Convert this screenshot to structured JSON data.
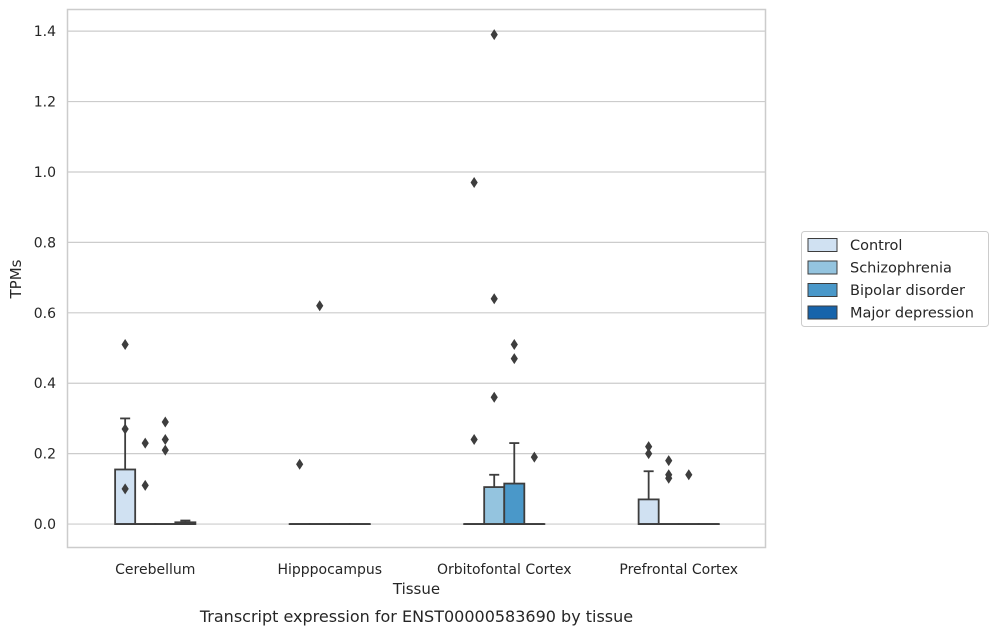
{
  "caption": "Transcript expression for ENST00000583690 by tissue",
  "chart_data": {
    "type": "box",
    "xlabel": "Tissue",
    "ylabel": "TPMs",
    "ylim": [
      -0.068,
      1.46
    ],
    "yticks": [
      0.0,
      0.2,
      0.4,
      0.6,
      0.8,
      1.0,
      1.2,
      1.4
    ],
    "ytick_labels": [
      "0.0",
      "0.2",
      "0.4",
      "0.6",
      "0.8",
      "1.0",
      "1.2",
      "1.4"
    ],
    "grid": "horizontal",
    "legend_placement": "right",
    "categories": [
      "Cerebellum",
      "Hipppocampus",
      "Orbitofontal Cortex",
      "Prefrontal Cortex"
    ],
    "series": [
      {
        "name": "Control",
        "color": "#d0e1f2",
        "boxes": [
          {
            "q1": 0.0,
            "median": 0.0,
            "q3": 0.155,
            "whisker_low": 0.0,
            "whisker_high": 0.3,
            "outliers": [
              0.1,
              0.27,
              0.51
            ]
          },
          {
            "q1": 0.0,
            "median": 0.0,
            "q3": 0.0,
            "whisker_low": 0.0,
            "whisker_high": 0.0,
            "outliers": [
              0.17
            ]
          },
          {
            "q1": 0.0,
            "median": 0.0,
            "q3": 0.0,
            "whisker_low": 0.0,
            "whisker_high": 0.0,
            "outliers": [
              0.24,
              0.97
            ]
          },
          {
            "q1": 0.0,
            "median": 0.0,
            "q3": 0.07,
            "whisker_low": 0.0,
            "whisker_high": 0.15,
            "outliers": [
              0.2,
              0.22
            ]
          }
        ]
      },
      {
        "name": "Schizophrenia",
        "color": "#94c4df",
        "boxes": [
          {
            "q1": 0.0,
            "median": 0.0,
            "q3": 0.0,
            "whisker_low": 0.0,
            "whisker_high": 0.0,
            "outliers": [
              0.11,
              0.23
            ]
          },
          {
            "q1": 0.0,
            "median": 0.0,
            "q3": 0.0,
            "whisker_low": 0.0,
            "whisker_high": 0.0,
            "outliers": [
              0.62
            ]
          },
          {
            "q1": 0.0,
            "median": 0.0,
            "q3": 0.105,
            "whisker_low": 0.0,
            "whisker_high": 0.14,
            "outliers": [
              0.36,
              0.64,
              1.39
            ]
          },
          {
            "q1": 0.0,
            "median": 0.0,
            "q3": 0.0,
            "whisker_low": 0.0,
            "whisker_high": 0.0,
            "outliers": [
              0.13,
              0.14,
              0.18
            ]
          }
        ]
      },
      {
        "name": "Bipolar disorder",
        "color": "#4a98c9",
        "boxes": [
          {
            "q1": 0.0,
            "median": 0.0,
            "q3": 0.0,
            "whisker_low": 0.0,
            "whisker_high": 0.0,
            "outliers": [
              0.21,
              0.24,
              0.29
            ]
          },
          {
            "q1": 0.0,
            "median": 0.0,
            "q3": 0.0,
            "whisker_low": 0.0,
            "whisker_high": 0.0,
            "outliers": []
          },
          {
            "q1": 0.0,
            "median": 0.0,
            "q3": 0.115,
            "whisker_low": 0.0,
            "whisker_high": 0.23,
            "outliers": [
              0.47,
              0.51
            ]
          },
          {
            "q1": 0.0,
            "median": 0.0,
            "q3": 0.0,
            "whisker_low": 0.0,
            "whisker_high": 0.0,
            "outliers": [
              0.14
            ]
          }
        ]
      },
      {
        "name": "Major depression",
        "color": "#1764ab",
        "boxes": [
          {
            "q1": 0.0,
            "median": 0.0,
            "q3": 0.005,
            "whisker_low": 0.0,
            "whisker_high": 0.01,
            "outliers": []
          },
          {
            "q1": 0.0,
            "median": 0.0,
            "q3": 0.0,
            "whisker_low": 0.0,
            "whisker_high": 0.0,
            "outliers": []
          },
          {
            "q1": 0.0,
            "median": 0.0,
            "q3": 0.0,
            "whisker_low": 0.0,
            "whisker_high": 0.0,
            "outliers": [
              0.19
            ]
          },
          {
            "q1": 0.0,
            "median": 0.0,
            "q3": 0.0,
            "whisker_low": 0.0,
            "whisker_high": 0.0,
            "outliers": []
          }
        ]
      }
    ]
  }
}
